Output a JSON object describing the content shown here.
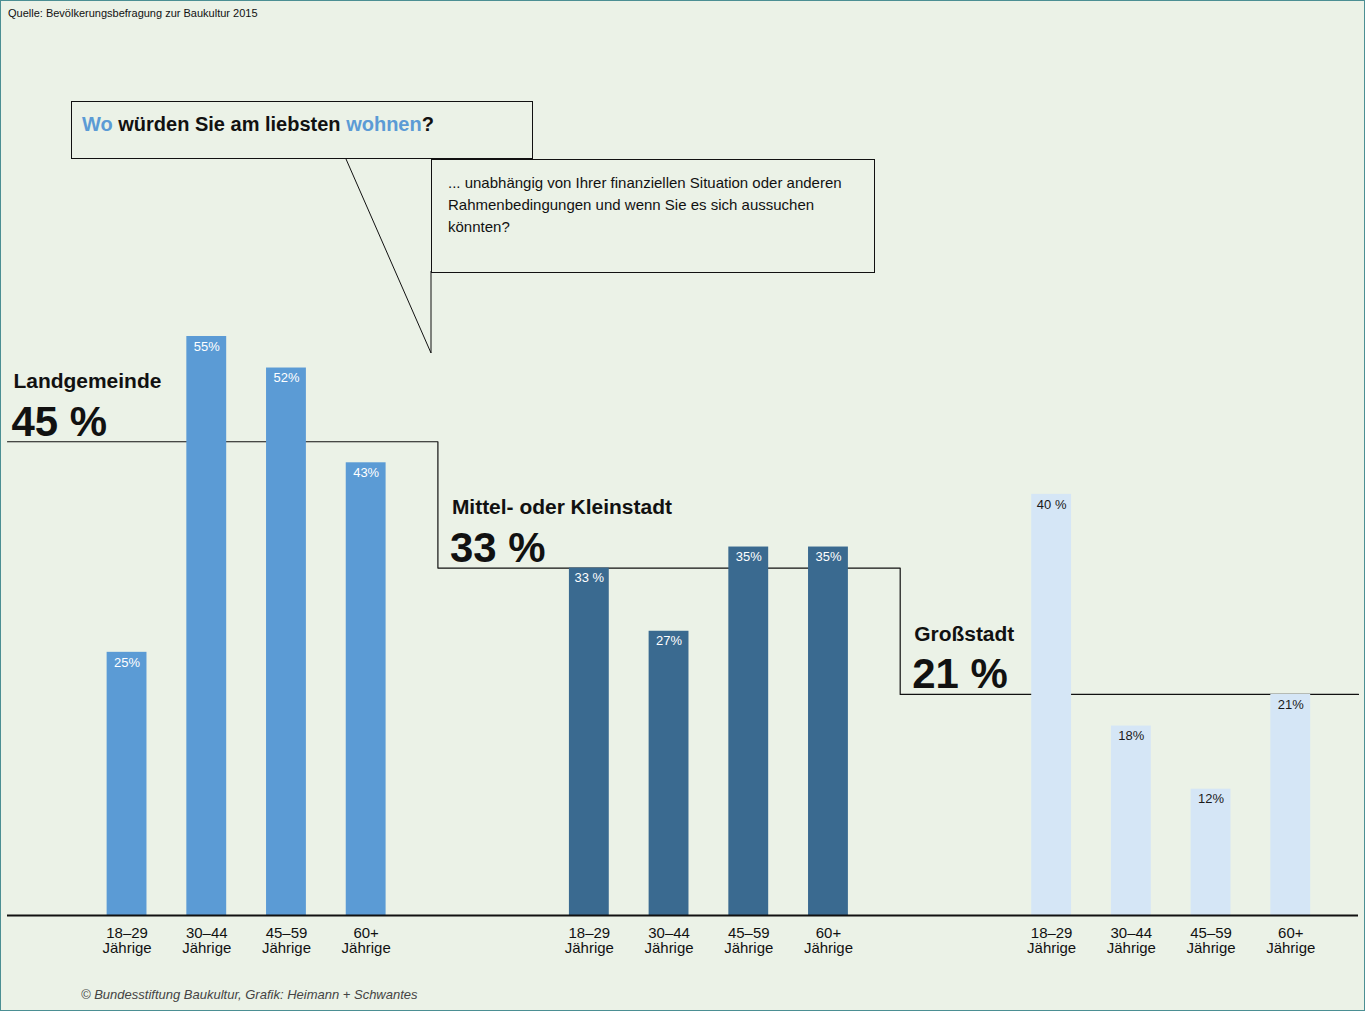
{
  "chart_data": {
    "type": "bar",
    "source": "Quelle: Bevölkerungsbefragung zur Baukultur 2015",
    "title": "Wo würden Sie am liebsten wohnen?",
    "title_highlight": [
      "Wo",
      "wohnen"
    ],
    "subtitle": "... unabhängig von Ihrer finanziellen Situation oder anderen Rahmenbedingungen und wenn Sie es sich aussuchen könnten?",
    "caption": "© Bundesstiftung Baukultur, Grafik: Heimann + Schwantes",
    "categories": [
      "18–29 Jährige",
      "30–44 Jährige",
      "45–59 Jährige",
      "60+ Jährige"
    ],
    "series": [
      {
        "name": "Landgemeinde",
        "color": "#5b9bd5",
        "values": [
          25,
          55,
          52,
          43
        ],
        "value_labels": [
          "25%",
          "55%",
          "52%",
          "43%"
        ],
        "total": 45,
        "total_label": "45 %"
      },
      {
        "name": "Mittel- oder Kleinstadt",
        "color": "#3a6a90",
        "values": [
          33,
          27,
          35,
          35
        ],
        "value_labels": [
          "33 %",
          "27%",
          "35%",
          "35%"
        ],
        "total": 33,
        "total_label": "33 %"
      },
      {
        "name": "Großstadt",
        "color": "#d5e6f6",
        "values": [
          40,
          18,
          12,
          21
        ],
        "value_labels": [
          "40 %",
          "18%",
          "12%",
          "21%"
        ],
        "total": 21,
        "total_label": "21 %"
      }
    ],
    "ylim": [
      0,
      55
    ],
    "tick_labels": "x",
    "data_labels": true,
    "grid": false
  }
}
